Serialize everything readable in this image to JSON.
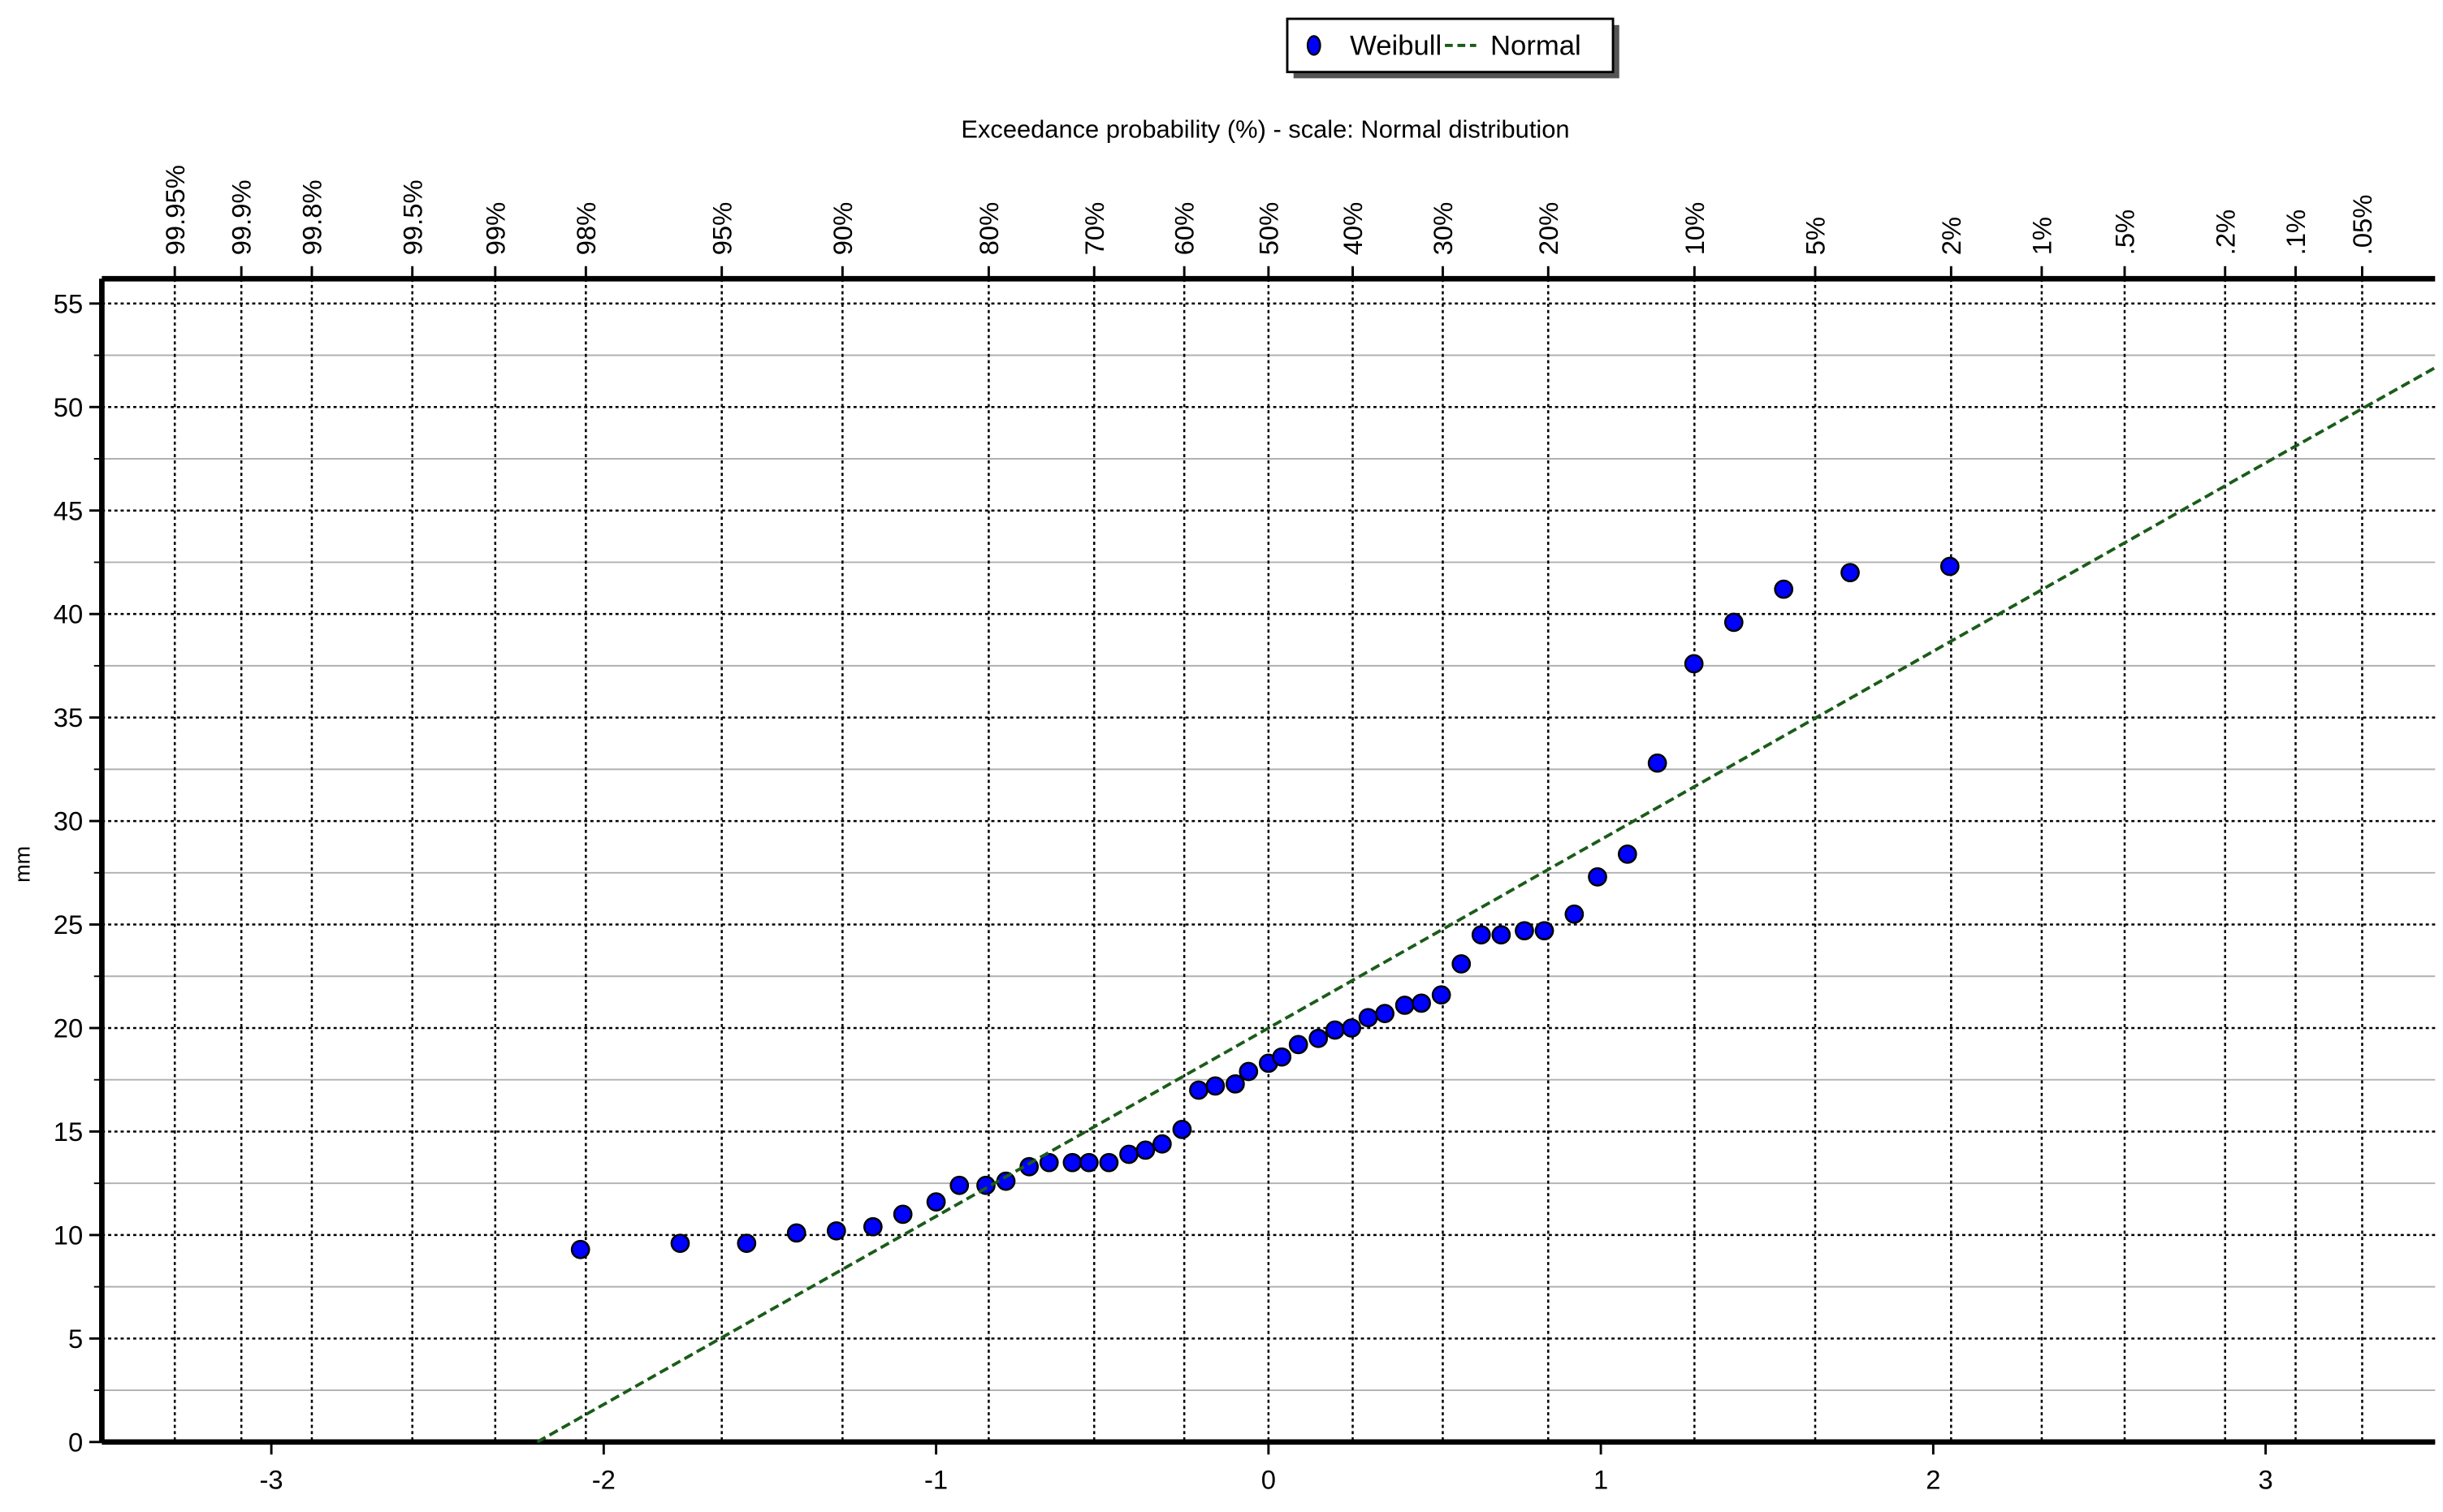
{
  "chart_data": {
    "type": "scatter",
    "x2_label": "Exceedance probability  (%) - scale: Normal distribution",
    "y_label": "mm",
    "xlim": [
      -3.51,
      3.51
    ],
    "xticks": [
      -3,
      -2,
      -1,
      0,
      1,
      2,
      3
    ],
    "ylim": [
      0,
      56.2
    ],
    "yticks": [
      0,
      5,
      10,
      15,
      20,
      25,
      30,
      35,
      40,
      45,
      50,
      55
    ],
    "yminorticks": [
      2.5,
      7.5,
      12.5,
      17.5,
      22.5,
      27.5,
      32.5,
      37.5,
      42.5,
      47.5,
      52.5
    ],
    "x2scale": "normal-exceedance",
    "x2ticks": [
      {
        "value": 99.95,
        "label": "99.95%"
      },
      {
        "value": 99.9,
        "label": "99.9%"
      },
      {
        "value": 99.8,
        "label": "99.8%"
      },
      {
        "value": 99.5,
        "label": "99.5%"
      },
      {
        "value": 99,
        "label": "99%"
      },
      {
        "value": 98,
        "label": "98%"
      },
      {
        "value": 95,
        "label": "95%"
      },
      {
        "value": 90,
        "label": "90%"
      },
      {
        "value": 80,
        "label": "80%"
      },
      {
        "value": 70,
        "label": "70%"
      },
      {
        "value": 60,
        "label": "60%"
      },
      {
        "value": 50,
        "label": "50%"
      },
      {
        "value": 40,
        "label": "40%"
      },
      {
        "value": 30,
        "label": "30%"
      },
      {
        "value": 20,
        "label": "20%"
      },
      {
        "value": 10,
        "label": "10%"
      },
      {
        "value": 5,
        "label": "5%"
      },
      {
        "value": 2,
        "label": "2%"
      },
      {
        "value": 1,
        "label": "1%"
      },
      {
        "value": 0.5,
        "label": ".5%"
      },
      {
        "value": 0.2,
        "label": ".2%"
      },
      {
        "value": 0.1,
        "label": ".1%"
      },
      {
        "value": 0.05,
        "label": ".05%"
      }
    ],
    "grid": true,
    "legend": "top",
    "series": [
      {
        "name": "Weibull",
        "mode": "markers",
        "color": "#0000ff",
        "x": [
          -2.07,
          -1.77,
          -1.57,
          -1.42,
          -1.3,
          -1.19,
          -1.1,
          -1.0,
          -0.93,
          -0.85,
          -0.79,
          -0.72,
          -0.66,
          -0.59,
          -0.54,
          -0.48,
          -0.42,
          -0.37,
          -0.32,
          -0.26,
          -0.21,
          -0.16,
          -0.1,
          -0.06,
          0.0,
          0.04,
          0.09,
          0.15,
          0.2,
          0.25,
          0.3,
          0.35,
          0.41,
          0.46,
          0.52,
          0.58,
          0.64,
          0.7,
          0.77,
          0.83,
          0.92,
          0.99,
          1.08,
          1.17,
          1.28,
          1.4,
          1.55,
          1.75,
          2.05
        ],
        "values": [
          9.3,
          9.6,
          9.6,
          10.1,
          10.2,
          10.4,
          11.0,
          11.6,
          12.4,
          12.4,
          12.6,
          13.3,
          13.5,
          13.5,
          13.5,
          13.5,
          13.9,
          14.1,
          14.4,
          15.1,
          17.0,
          17.2,
          17.3,
          17.9,
          18.3,
          18.6,
          19.2,
          19.5,
          19.9,
          20.0,
          20.5,
          20.7,
          21.1,
          21.2,
          21.6,
          23.1,
          24.5,
          24.5,
          24.7,
          24.7,
          25.5,
          27.3,
          28.4,
          32.8,
          37.6,
          39.6,
          41.2,
          42.0,
          42.3
        ]
      },
      {
        "name": "Normal",
        "mode": "dashed-line",
        "color": "#1a5c1a",
        "x": [
          -2.2,
          -1,
          0,
          1,
          2,
          3,
          3.51
        ],
        "values": [
          0,
          10.9,
          20,
          29.1,
          38.2,
          47.3,
          51.9
        ]
      }
    ]
  }
}
